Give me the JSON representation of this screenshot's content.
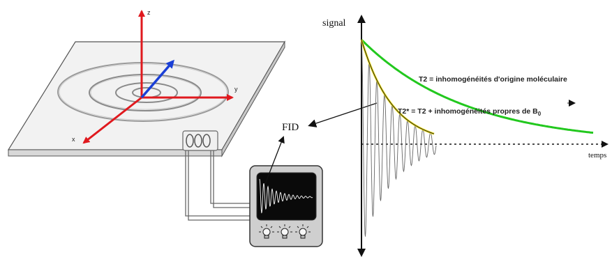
{
  "axes3d": {
    "z_label": "z",
    "y_label": "y",
    "x_label": "x"
  },
  "callout": {
    "fid_label": "FID"
  },
  "graph": {
    "signal_label": "signal",
    "time_label": "temps",
    "t2_label": "T2 = inhomogénéités d'origine moléculaire",
    "t2star_label_prefix": "T2* = T2 + inhomogénéités propres de ",
    "t2star_label_b": "B",
    "t2star_label_sub": "0"
  },
  "colors": {
    "axis_z": "#e0191e",
    "axis_y": "#e0191e",
    "axis_x": "#e0191e",
    "axis_blue": "#1a3fd6",
    "t2_curve": "#22c81e",
    "t2star_curve": "#f2e21a",
    "plate": "#f2f2f2",
    "scope_body": "#cfcfcf",
    "scope_screen": "#0a0a0a"
  },
  "icons": [
    "coil-icon",
    "oscilloscope-icon",
    "lightbulb-icon"
  ]
}
